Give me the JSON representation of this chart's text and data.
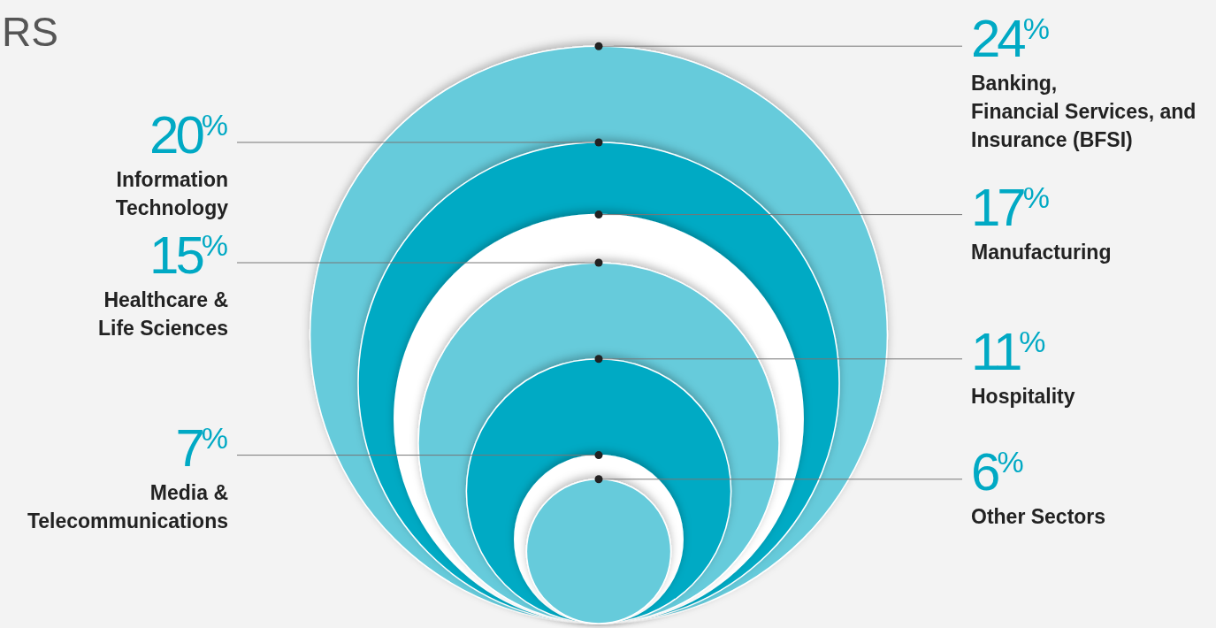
{
  "chart_data": {
    "type": "other",
    "title": "RS",
    "categories": [
      "Banking,\nFinancial Services, and\nInsurance (BFSI)",
      "Information\nTechnology",
      "Manufacturing",
      "Healthcare &\nLife Sciences",
      "Hospitality",
      "Media &\nTelecommunications",
      "Other Sectors"
    ],
    "values": [
      24,
      20,
      17,
      15,
      11,
      7,
      6
    ],
    "value_labels": [
      "24$^{%}$",
      "20$^{%}$",
      "17$^{%}$",
      "15$^{%}$",
      "11$^{%}$",
      "7$^{%}$",
      "6$^{%}$"
    ],
    "colors": [
      "#66cbdb",
      "#00aac4",
      "#ffffff",
      "#66cbdb",
      "#00aac4",
      "#ffffff",
      "#66cbdb"
    ]
  }
}
